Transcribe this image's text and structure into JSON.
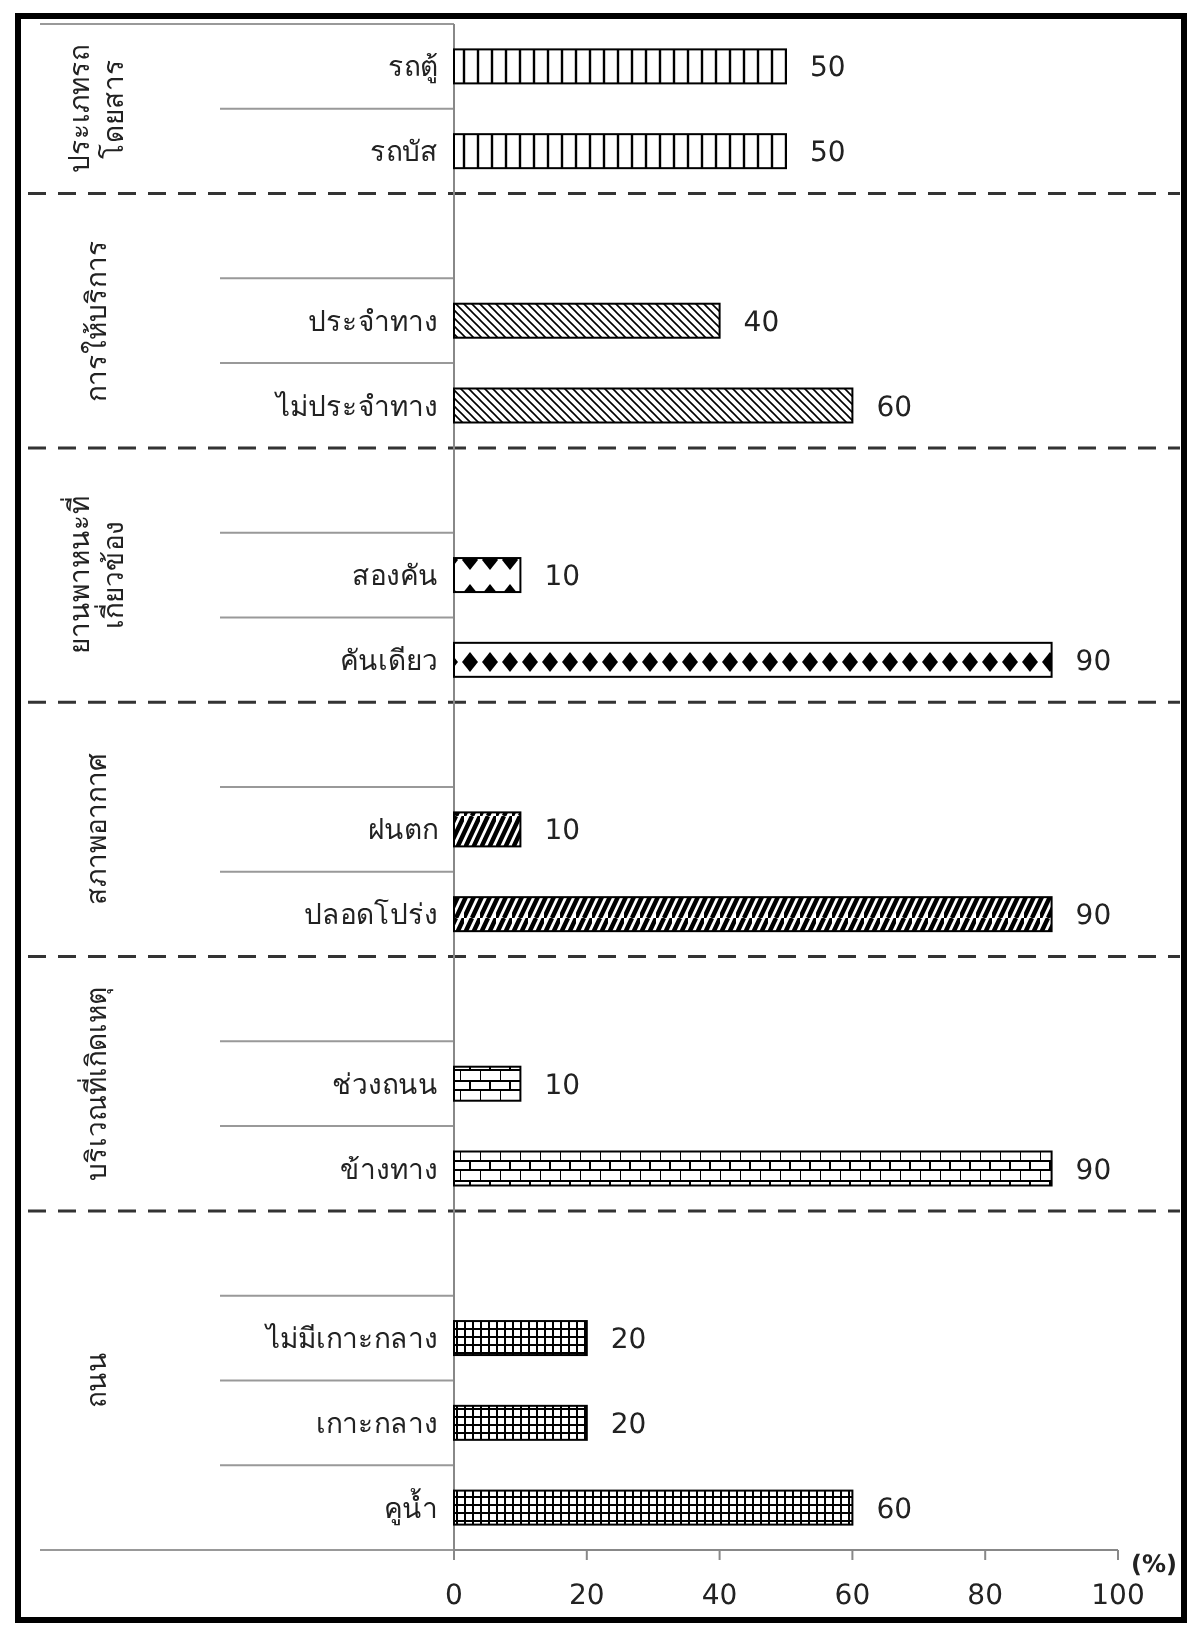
{
  "chart_data": {
    "type": "bar",
    "orientation": "horizontal",
    "color": "#000000",
    "categories": [
      "รถตู้",
      "รถบัส",
      null,
      "ประจำทาง",
      "ไม่ประจำทาง",
      null,
      "สองคัน",
      "คันเดียว",
      null,
      "ฝนตก",
      "ปลอดโปร่ง",
      null,
      "ช่วงถนน",
      "ข้างทาง",
      null,
      "ไม่มีเกาะกลาง",
      "เกาะกลาง",
      "คูน้ำ"
    ],
    "values": [
      50,
      50,
      null,
      40,
      60,
      null,
      10,
      90,
      null,
      10,
      90,
      null,
      10,
      90,
      null,
      20,
      20,
      60
    ],
    "xlim": [
      0,
      100
    ],
    "xticks": [
      0,
      20,
      40,
      60,
      80,
      100
    ],
    "xlabel": "(%)",
    "data_labels": true,
    "annotations": [
      "ประเภทรถ โดยสาร",
      "การให้บริการ",
      "ยานพาหนะที่ เกี่ยวข้อง",
      "สภาพอากาศ",
      "บริเวณที่เกิดเหตุ",
      "ถนน"
    ]
  }
}
